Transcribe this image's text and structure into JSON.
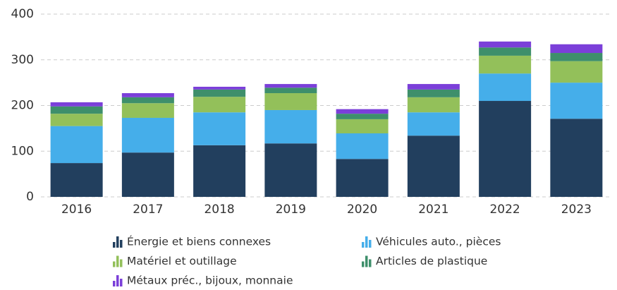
{
  "chart_data": {
    "type": "stacked_bar",
    "categories": [
      "2016",
      "2017",
      "2018",
      "2019",
      "2020",
      "2021",
      "2022",
      "2023"
    ],
    "series": [
      {
        "name": "Énergie et biens connexes",
        "color": "#223f5e",
        "values": [
          74,
          97,
          113,
          117,
          83,
          134,
          210,
          171
        ]
      },
      {
        "name": "Véhicules auto., pièces",
        "color": "#45aeea",
        "values": [
          81,
          76,
          72,
          73,
          56,
          51,
          60,
          79
        ]
      },
      {
        "name": "Matériel et outillage",
        "color": "#93c05a",
        "values": [
          27,
          32,
          34,
          37,
          31,
          33,
          39,
          47
        ]
      },
      {
        "name": "Articles de plastique",
        "color": "#3e8f6b",
        "values": [
          16,
          13,
          16,
          12,
          12,
          17,
          18,
          18
        ]
      },
      {
        "name": "Métaux préc., bijoux, monnaie",
        "color": "#7b3fd9",
        "values": [
          9,
          9,
          6,
          8,
          10,
          12,
          13,
          19
        ]
      }
    ],
    "ylim": [
      0,
      400
    ],
    "yticks": [
      0,
      100,
      200,
      300,
      400
    ],
    "grid": true
  }
}
